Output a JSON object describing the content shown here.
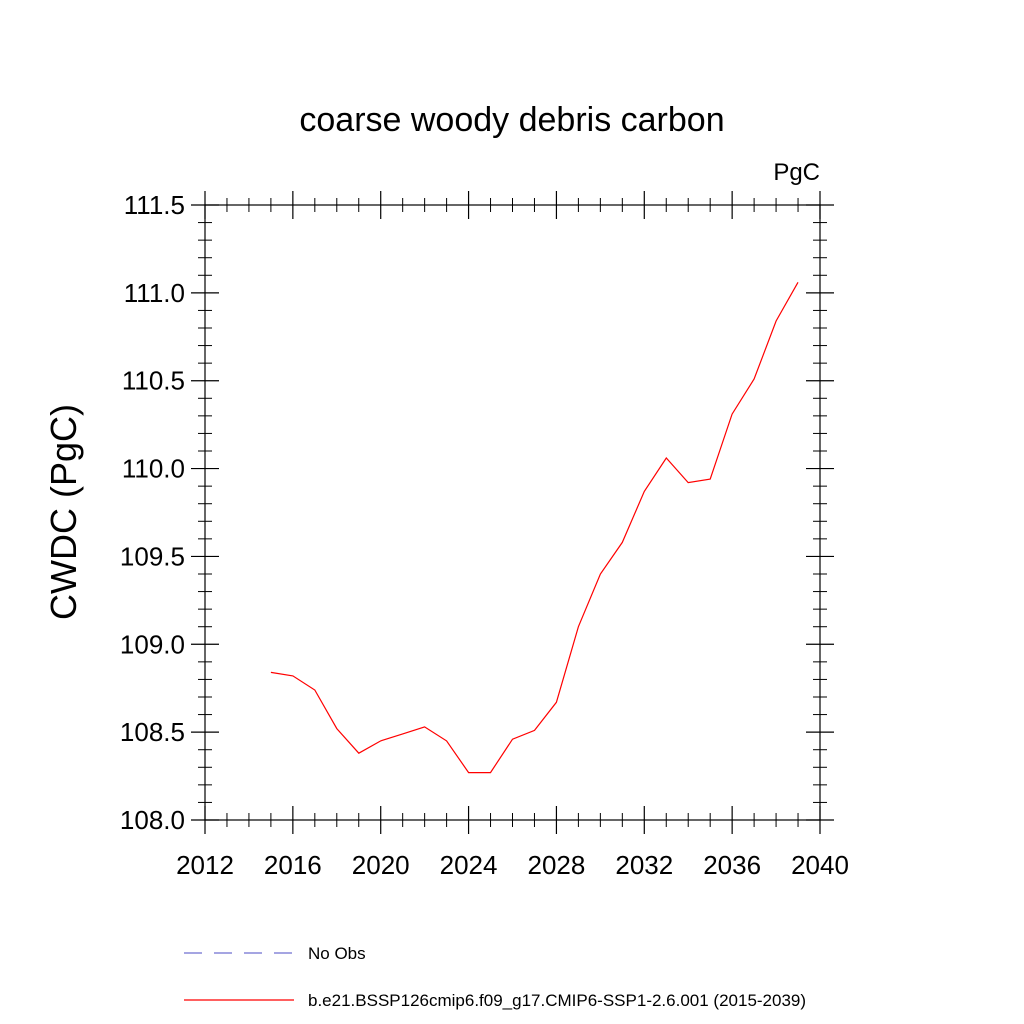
{
  "chart_data": {
    "type": "line",
    "title": "coarse woody debris carbon",
    "units": "PgC",
    "ylabel": "CWDC  (PgC)",
    "xlabel": "",
    "xlim": [
      2012,
      2040
    ],
    "ylim": [
      108.0,
      111.6
    ],
    "xticks": [
      2012,
      2016,
      2020,
      2024,
      2028,
      2032,
      2036,
      2040
    ],
    "xtick_labels": [
      "2012",
      "2016",
      "2020",
      "2024",
      "2028",
      "2032",
      "2036",
      "2040"
    ],
    "yticks": [
      108.0,
      108.5,
      109.0,
      109.5,
      110.0,
      110.5,
      111.0,
      111.5
    ],
    "ytick_labels": [
      "108.0",
      "108.5",
      "109.0",
      "109.5",
      "110.0",
      "110.5",
      "111.0",
      "111.5"
    ],
    "grid": false,
    "legend_position": "bottom",
    "series": [
      {
        "name": "No Obs",
        "color": "#6f6fd0",
        "dash": "dashed",
        "x": [],
        "y": []
      },
      {
        "name": "b.e21.BSSP126cmip6.f09_g17.CMIP6-SSP1-2.6.001 (2015-2039)",
        "color": "#ff0000",
        "dash": "solid",
        "x": [
          2015,
          2016,
          2017,
          2018,
          2019,
          2020,
          2021,
          2022,
          2023,
          2024,
          2025,
          2026,
          2027,
          2028,
          2029,
          2030,
          2031,
          2032,
          2033,
          2034,
          2035,
          2036,
          2037,
          2038,
          2039
        ],
        "y": [
          108.84,
          108.82,
          108.74,
          108.52,
          108.38,
          108.45,
          108.49,
          108.53,
          108.45,
          108.27,
          108.27,
          108.46,
          108.51,
          108.67,
          109.1,
          109.4,
          109.58,
          109.87,
          110.06,
          109.92,
          109.94,
          110.31,
          110.51,
          110.84,
          111.06
        ]
      }
    ]
  }
}
